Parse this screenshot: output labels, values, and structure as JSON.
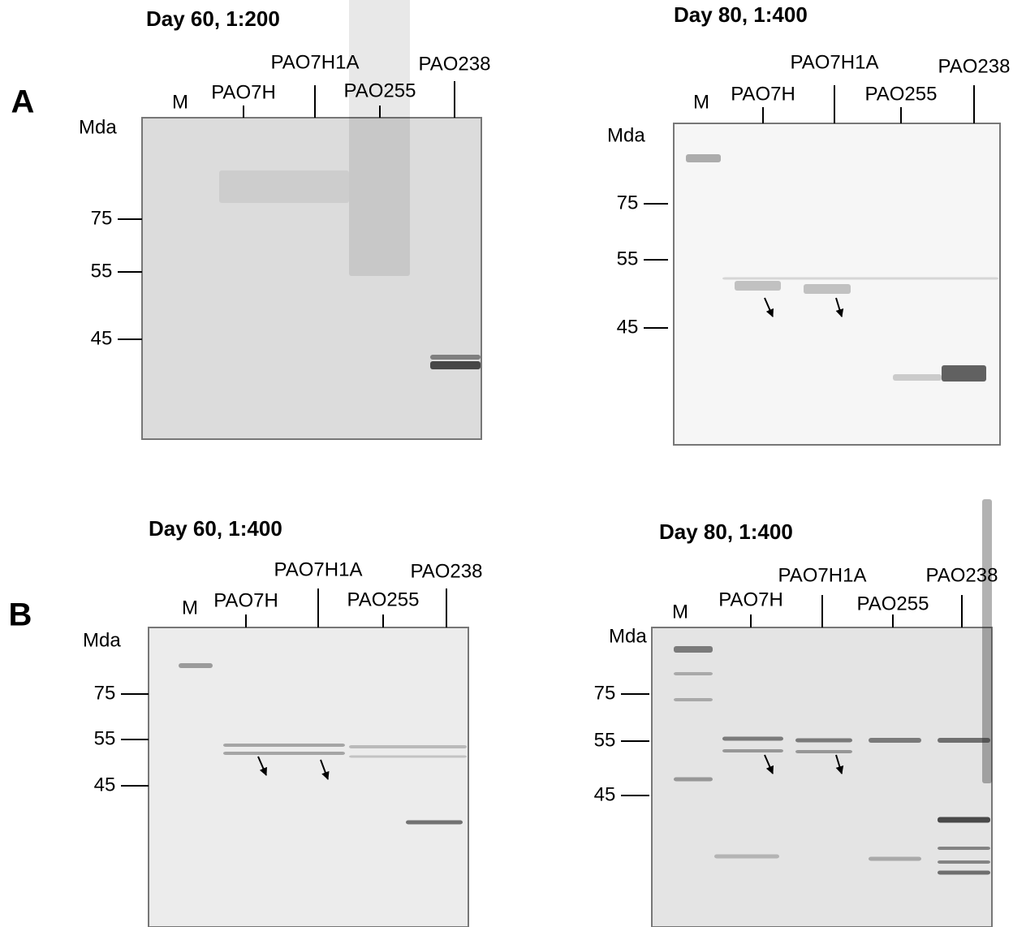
{
  "panels": [
    {
      "label": "A",
      "blots": [
        {
          "title": "Day 60, 1:200",
          "lanes": [
            "M",
            "PAO7H",
            "PAO7H1A",
            "PAO255",
            "PAO238"
          ],
          "unit": "Mda",
          "markers": [
            "75",
            "55",
            "45"
          ]
        },
        {
          "title": "Day 80, 1:400",
          "lanes": [
            "M",
            "PAO7H",
            "PAO7H1A",
            "PAO255",
            "PAO238"
          ],
          "unit": "Mda",
          "markers": [
            "75",
            "55",
            "45"
          ]
        }
      ]
    },
    {
      "label": "B",
      "blots": [
        {
          "title": "Day 60, 1:400",
          "lanes": [
            "M",
            "PAO7H",
            "PAO7H1A",
            "PAO255",
            "PAO238"
          ],
          "unit": "Mda",
          "markers": [
            "75",
            "55",
            "45"
          ]
        },
        {
          "title": "Day 80, 1:400",
          "lanes": [
            "M",
            "PAO7H",
            "PAO7H1A",
            "PAO255",
            "PAO238"
          ],
          "unit": "Mda",
          "markers": [
            "75",
            "55",
            "45"
          ]
        }
      ]
    }
  ]
}
